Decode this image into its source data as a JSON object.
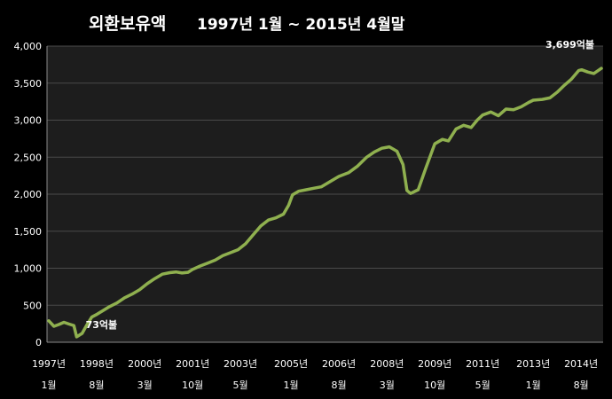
{
  "chart_data": {
    "type": "line",
    "title": "외환보유액",
    "subtitle": "1997년 1월 ~ 2015년 4월말",
    "y_ticks": [
      "0",
      "500",
      "1,000",
      "1,500",
      "2,000",
      "2,500",
      "3,000",
      "3,500",
      "4,000"
    ],
    "ylim": [
      0,
      4000
    ],
    "xlim": [
      1997.0,
      2015.25
    ],
    "grid": true,
    "x_ticks": [
      {
        "x": 1997.0,
        "line1": "1997년",
        "line2": "1월"
      },
      {
        "x": 1998.58,
        "line1": "1998년",
        "line2": "8월"
      },
      {
        "x": 2000.17,
        "line1": "2000년",
        "line2": "3월"
      },
      {
        "x": 2001.75,
        "line1": "2001년",
        "line2": "10월"
      },
      {
        "x": 2003.33,
        "line1": "2003년",
        "line2": "5월"
      },
      {
        "x": 2005.0,
        "line1": "2005년",
        "line2": "1월"
      },
      {
        "x": 2006.58,
        "line1": "2006년",
        "line2": "8월"
      },
      {
        "x": 2008.17,
        "line1": "2008년",
        "line2": "3월"
      },
      {
        "x": 2009.75,
        "line1": "2009년",
        "line2": "10월"
      },
      {
        "x": 2011.33,
        "line1": "2011년",
        "line2": "5월"
      },
      {
        "x": 2013.0,
        "line1": "2013년",
        "line2": "1월"
      },
      {
        "x": 2014.58,
        "line1": "2014년",
        "line2": "8월"
      }
    ],
    "series": [
      {
        "color": "#8fb04f",
        "points": [
          [
            1997.0,
            290
          ],
          [
            1997.17,
            215
          ],
          [
            1997.33,
            240
          ],
          [
            1997.5,
            270
          ],
          [
            1997.67,
            245
          ],
          [
            1997.83,
            225
          ],
          [
            1997.92,
            73
          ],
          [
            1998.1,
            120
          ],
          [
            1998.25,
            230
          ],
          [
            1998.42,
            340
          ],
          [
            1998.6,
            380
          ],
          [
            1998.8,
            430
          ],
          [
            1999.0,
            480
          ],
          [
            1999.25,
            530
          ],
          [
            1999.5,
            600
          ],
          [
            1999.75,
            650
          ],
          [
            2000.0,
            710
          ],
          [
            2000.25,
            790
          ],
          [
            2000.5,
            860
          ],
          [
            2000.75,
            920
          ],
          [
            2001.0,
            940
          ],
          [
            2001.2,
            950
          ],
          [
            2001.4,
            935
          ],
          [
            2001.6,
            945
          ],
          [
            2001.75,
            985
          ],
          [
            2002.0,
            1030
          ],
          [
            2002.25,
            1070
          ],
          [
            2002.5,
            1110
          ],
          [
            2002.75,
            1170
          ],
          [
            2003.0,
            1210
          ],
          [
            2003.25,
            1250
          ],
          [
            2003.5,
            1330
          ],
          [
            2003.75,
            1450
          ],
          [
            2004.0,
            1570
          ],
          [
            2004.25,
            1650
          ],
          [
            2004.5,
            1680
          ],
          [
            2004.75,
            1730
          ],
          [
            2004.92,
            1850
          ],
          [
            2005.05,
            1990
          ],
          [
            2005.25,
            2040
          ],
          [
            2005.5,
            2060
          ],
          [
            2005.75,
            2080
          ],
          [
            2006.0,
            2100
          ],
          [
            2006.25,
            2160
          ],
          [
            2006.58,
            2240
          ],
          [
            2006.9,
            2290
          ],
          [
            2007.2,
            2380
          ],
          [
            2007.5,
            2500
          ],
          [
            2007.75,
            2570
          ],
          [
            2008.0,
            2620
          ],
          [
            2008.25,
            2640
          ],
          [
            2008.5,
            2580
          ],
          [
            2008.7,
            2400
          ],
          [
            2008.83,
            2050
          ],
          [
            2008.95,
            2010
          ],
          [
            2009.2,
            2060
          ],
          [
            2009.45,
            2350
          ],
          [
            2009.75,
            2680
          ],
          [
            2010.0,
            2740
          ],
          [
            2010.2,
            2720
          ],
          [
            2010.45,
            2880
          ],
          [
            2010.7,
            2930
          ],
          [
            2010.95,
            2900
          ],
          [
            2011.15,
            3000
          ],
          [
            2011.33,
            3070
          ],
          [
            2011.6,
            3110
          ],
          [
            2011.85,
            3060
          ],
          [
            2012.1,
            3150
          ],
          [
            2012.35,
            3140
          ],
          [
            2012.6,
            3180
          ],
          [
            2012.85,
            3240
          ],
          [
            2013.0,
            3270
          ],
          [
            2013.3,
            3280
          ],
          [
            2013.55,
            3300
          ],
          [
            2013.8,
            3380
          ],
          [
            2014.0,
            3460
          ],
          [
            2014.25,
            3550
          ],
          [
            2014.5,
            3670
          ],
          [
            2014.6,
            3680
          ],
          [
            2014.8,
            3650
          ],
          [
            2015.0,
            3630
          ],
          [
            2015.25,
            3699
          ]
        ]
      }
    ],
    "annotations": [
      {
        "text": "73억불",
        "x": 1997.92,
        "y": 73
      },
      {
        "text": "3,699억불",
        "x": 2015.25,
        "y": 3699
      }
    ]
  }
}
